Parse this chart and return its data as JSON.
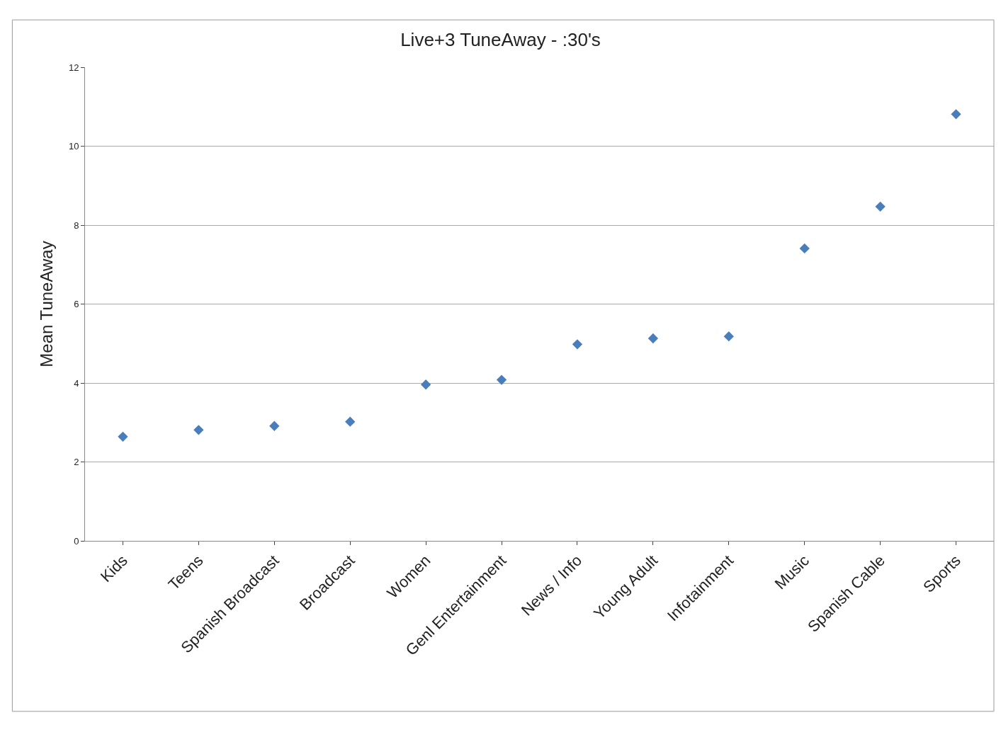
{
  "chart_data": {
    "type": "scatter",
    "title": "Live+3 TuneAway - :30's",
    "ylabel": "Mean TuneAway",
    "categories": [
      "Kids",
      "Teens",
      "Spanish Broadcast",
      "Broadcast",
      "Women",
      "Genl Entertainment",
      "News / Info",
      "Young Adult",
      "Infotainment",
      "Music",
      "Spanish Cable",
      "Sports"
    ],
    "values": [
      2.64,
      2.81,
      2.91,
      3.02,
      3.96,
      4.08,
      4.98,
      5.13,
      5.18,
      7.41,
      8.47,
      10.81
    ],
    "color": "#4a7ebb",
    "marker": "diamond",
    "ylim": [
      0,
      12
    ],
    "yticks": [
      0,
      2,
      4,
      6,
      8,
      10,
      12
    ],
    "grid": "y"
  }
}
